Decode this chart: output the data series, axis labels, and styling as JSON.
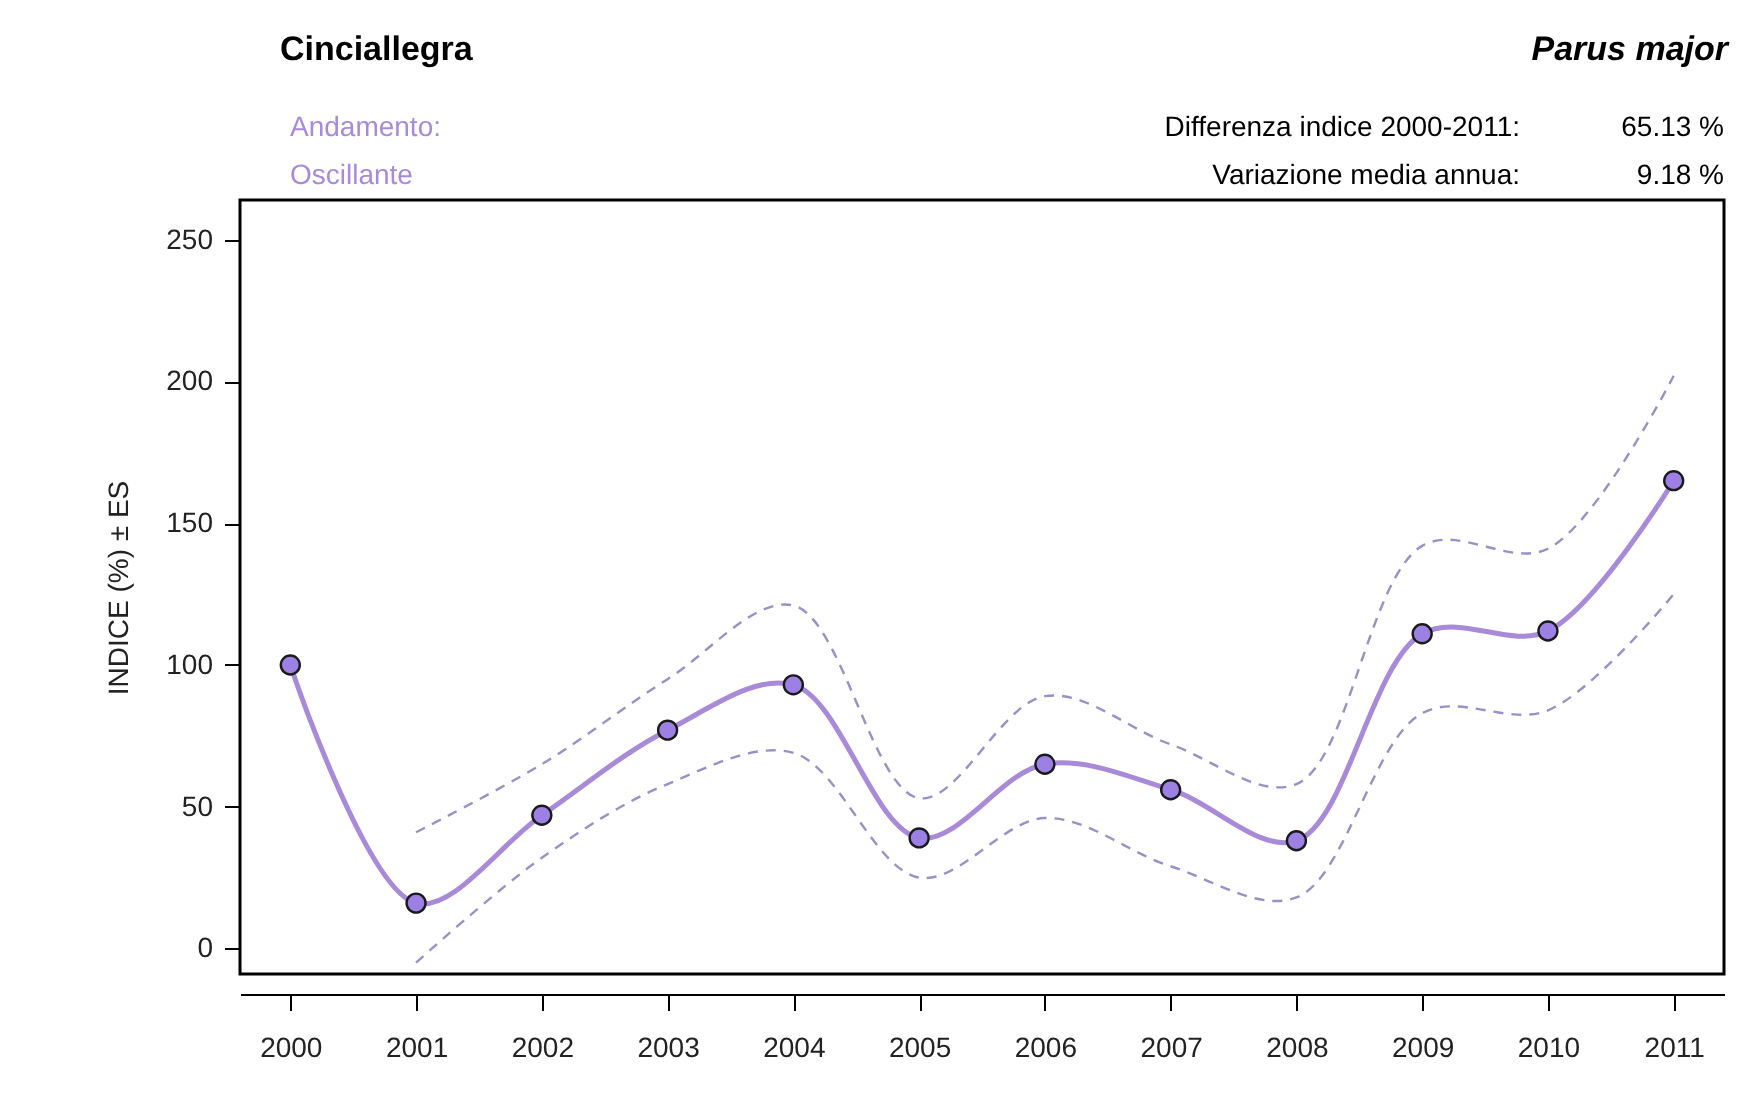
{
  "chart_data": {
    "type": "line",
    "title": "Cinciallegra",
    "subtitle": "Parus major",
    "ylabel": "INDICE (%) ± ES",
    "annotations": [
      "Andamento:",
      "Oscillante",
      "Differenza indice 2000-2011:",
      "65.13 %",
      "Variazione media annua:",
      "9.18 %"
    ],
    "categories": [
      "2000",
      "2001",
      "2002",
      "2003",
      "2004",
      "2005",
      "2006",
      "2007",
      "2008",
      "2009",
      "2010",
      "2011"
    ],
    "series": [
      {
        "color": "#a88ad8",
        "values": [
          100,
          16,
          47,
          77,
          93,
          39,
          65,
          56,
          38,
          111,
          112,
          165
        ]
      },
      {
        "color": "#9a90c8",
        "line_style": "dashed",
        "marker": "none",
        "values": [
          null,
          41,
          65,
          95,
          121,
          53,
          89,
          72,
          58,
          142,
          141,
          202
        ]
      },
      {
        "color": "#9a90c8",
        "line_style": "dashed",
        "marker": "none",
        "values": [
          null,
          -5,
          32,
          58,
          69,
          25,
          46,
          29,
          18,
          83,
          84,
          125
        ]
      }
    ],
    "ylim": [
      -9,
      264
    ],
    "yticks": [
      0,
      50,
      100,
      150,
      200,
      250
    ],
    "grid": false,
    "marker": "circle",
    "line_style": "solid"
  }
}
